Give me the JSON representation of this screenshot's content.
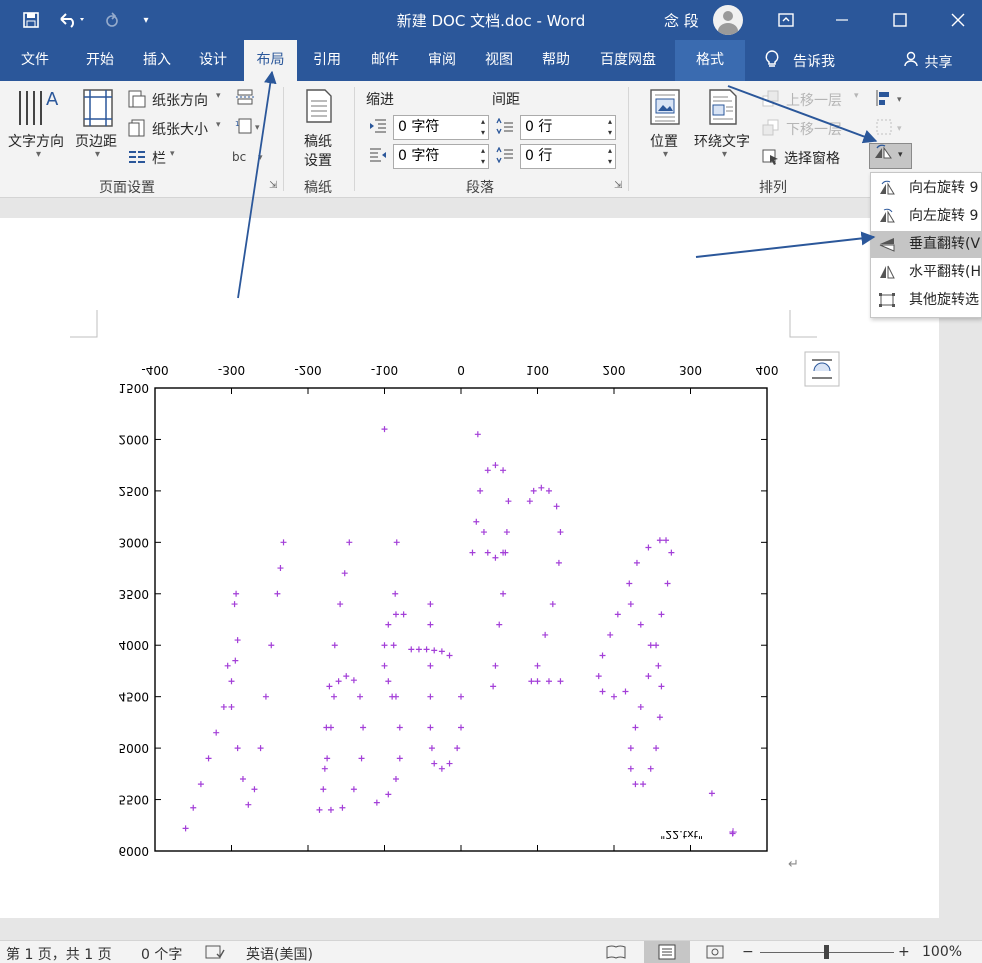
{
  "titlebar": {
    "title": "新建 DOC 文档.doc  -  Word",
    "user": "念 段",
    "icons": [
      "save-icon",
      "undo-icon",
      "redo-icon",
      "customize-icon",
      "ribbon-display-icon",
      "minimize-icon",
      "maximize-icon",
      "close-icon"
    ]
  },
  "tabs": [
    "文件",
    "开始",
    "插入",
    "设计",
    "布局",
    "引用",
    "邮件",
    "审阅",
    "视图",
    "帮助",
    "百度网盘",
    "格式"
  ],
  "active_tab": "布局",
  "tell_me": "告诉我",
  "share": "共享",
  "ribbon": {
    "page_setup": {
      "text_direction": "文字方向",
      "margins": "页边距",
      "orientation": "纸张方向",
      "size": "纸张大小",
      "columns": "栏",
      "group": "页面设置"
    },
    "draft": {
      "button": "稿纸\n设置",
      "btn_line1": "稿纸",
      "btn_line2": "设置",
      "group": "稿纸"
    },
    "paragraph": {
      "indent": "缩进",
      "spacing": "间距",
      "indent_left": "0 字符",
      "indent_right": "0 字符",
      "spacing_before": "0 行",
      "spacing_after": "0 行",
      "group": "段落"
    },
    "arrange": {
      "position": "位置",
      "wrap_text": "环绕文字",
      "bring_forward": "上移一层",
      "send_backward": "下移一层",
      "selection_pane": "选择窗格",
      "group": "排列"
    }
  },
  "rotate_menu": [
    {
      "icon": "rotate-right-icon",
      "label": "向右旋转 9"
    },
    {
      "icon": "rotate-left-icon",
      "label": "向左旋转 9"
    },
    {
      "icon": "flip-vertical-icon",
      "label": "垂直翻转(V"
    },
    {
      "icon": "flip-horizontal-icon",
      "label": "水平翻转(H"
    },
    {
      "icon": "more-rotation-icon",
      "label": "其他旋转选"
    }
  ],
  "highlight_color": "#2b579a",
  "chart_data": {
    "type": "scatter",
    "title": "",
    "xlabel": "",
    "ylabel": "",
    "xlim": [
      -400,
      400
    ],
    "ylim": [
      1500,
      6000
    ],
    "x_ticks": [
      "-400",
      "-300",
      "-200",
      "-100",
      "0",
      "100",
      "200",
      "300",
      "400"
    ],
    "y_ticks": [
      "1500",
      "2000",
      "2500",
      "3000",
      "3500",
      "4000",
      "4500",
      "5000",
      "5500",
      "6000"
    ],
    "legend": "\"22.txt\"",
    "legend_position": "bottom-right",
    "mirrored": true,
    "marker": "+",
    "color": "#a33fd8",
    "series": [
      {
        "name": "\"22.txt\"",
        "points": [
          [
            -360,
            5780
          ],
          [
            -350,
            5580
          ],
          [
            -340,
            5350
          ],
          [
            -330,
            5100
          ],
          [
            -320,
            4850
          ],
          [
            -310,
            4600
          ],
          [
            -300,
            4350
          ],
          [
            -295,
            4150
          ],
          [
            -292,
            3950
          ],
          [
            -296,
            3600
          ],
          [
            -294,
            3500
          ],
          [
            -305,
            4200
          ],
          [
            -300,
            4600
          ],
          [
            -292,
            5000
          ],
          [
            -285,
            5300
          ],
          [
            -278,
            5550
          ],
          [
            -270,
            5400
          ],
          [
            -262,
            5000
          ],
          [
            -255,
            4500
          ],
          [
            -248,
            4000
          ],
          [
            -240,
            3500
          ],
          [
            -236,
            3250
          ],
          [
            -232,
            3000
          ],
          [
            -185,
            5600
          ],
          [
            -180,
            5400
          ],
          [
            -175,
            5100
          ],
          [
            -170,
            4800
          ],
          [
            -166,
            4500
          ],
          [
            -160,
            4350
          ],
          [
            -150,
            4300
          ],
          [
            -140,
            4340
          ],
          [
            -132,
            4500
          ],
          [
            -128,
            4800
          ],
          [
            -130,
            5100
          ],
          [
            -140,
            5400
          ],
          [
            -155,
            5580
          ],
          [
            -170,
            5600
          ],
          [
            -178,
            5200
          ],
          [
            -176,
            4800
          ],
          [
            -172,
            4400
          ],
          [
            -165,
            4000
          ],
          [
            -158,
            3600
          ],
          [
            -152,
            3300
          ],
          [
            -146,
            3000
          ],
          [
            -110,
            5530
          ],
          [
            -95,
            5450
          ],
          [
            -85,
            5300
          ],
          [
            -80,
            5100
          ],
          [
            -80,
            4800
          ],
          [
            -85,
            4500
          ],
          [
            -95,
            4350
          ],
          [
            -100,
            4200
          ],
          [
            -100,
            4000
          ],
          [
            -95,
            3800
          ],
          [
            -85,
            3700
          ],
          [
            -75,
            3700
          ],
          [
            -90,
            4500
          ],
          [
            -88,
            4000
          ],
          [
            -86,
            3500
          ],
          [
            -84,
            3000
          ],
          [
            -65,
            4040
          ],
          [
            -55,
            4040
          ],
          [
            -45,
            4040
          ],
          [
            -35,
            4050
          ],
          [
            -25,
            4060
          ],
          [
            -15,
            4100
          ],
          [
            -40,
            3600
          ],
          [
            -40,
            3800
          ],
          [
            -40,
            4200
          ],
          [
            -40,
            4500
          ],
          [
            -40,
            4800
          ],
          [
            -38,
            5000
          ],
          [
            -35,
            5150
          ],
          [
            -25,
            5200
          ],
          [
            -15,
            5150
          ],
          [
            -5,
            5000
          ],
          [
            0,
            4800
          ],
          [
            0,
            4500
          ],
          [
            -100,
            1900
          ],
          [
            22,
            1950
          ],
          [
            15,
            3100
          ],
          [
            20,
            2800
          ],
          [
            25,
            2500
          ],
          [
            35,
            2300
          ],
          [
            45,
            2250
          ],
          [
            55,
            2300
          ],
          [
            62,
            2600
          ],
          [
            60,
            2900
          ],
          [
            55,
            3100
          ],
          [
            45,
            3150
          ],
          [
            35,
            3100
          ],
          [
            30,
            2900
          ],
          [
            58,
            3100
          ],
          [
            55,
            3500
          ],
          [
            50,
            3800
          ],
          [
            45,
            4200
          ],
          [
            42,
            4400
          ],
          [
            90,
            2600
          ],
          [
            95,
            2500
          ],
          [
            105,
            2470
          ],
          [
            115,
            2500
          ],
          [
            125,
            2650
          ],
          [
            130,
            2900
          ],
          [
            128,
            3200
          ],
          [
            120,
            3600
          ],
          [
            110,
            3900
          ],
          [
            100,
            4200
          ],
          [
            92,
            4350
          ],
          [
            100,
            4350
          ],
          [
            115,
            4350
          ],
          [
            130,
            4350
          ],
          [
            205,
            3700
          ],
          [
            195,
            3900
          ],
          [
            185,
            4100
          ],
          [
            180,
            4300
          ],
          [
            185,
            4450
          ],
          [
            200,
            4500
          ],
          [
            215,
            4450
          ],
          [
            260,
            2980
          ],
          [
            245,
            3050
          ],
          [
            230,
            3200
          ],
          [
            220,
            3400
          ],
          [
            222,
            3600
          ],
          [
            235,
            3800
          ],
          [
            248,
            4000
          ],
          [
            258,
            4200
          ],
          [
            262,
            4400
          ],
          [
            260,
            4700
          ],
          [
            255,
            5000
          ],
          [
            248,
            5200
          ],
          [
            238,
            5350
          ],
          [
            228,
            5350
          ],
          [
            222,
            5200
          ],
          [
            222,
            5000
          ],
          [
            228,
            4800
          ],
          [
            235,
            4600
          ],
          [
            245,
            4300
          ],
          [
            255,
            4000
          ],
          [
            262,
            3700
          ],
          [
            270,
            3400
          ],
          [
            275,
            3100
          ],
          [
            268,
            2980
          ],
          [
            328,
            5440
          ],
          [
            355,
            5830
          ]
        ]
      }
    ]
  },
  "status": {
    "page": "第 1 页，共 1 页",
    "words": "0 个字",
    "language": "英语(美国)",
    "zoom": "100%"
  }
}
